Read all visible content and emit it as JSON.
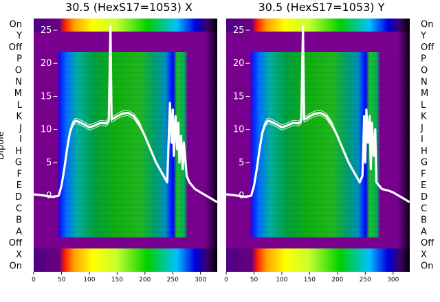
{
  "chart_data": [
    {
      "type": "heatmap",
      "title": "30.5 (HexS17=1053) X",
      "ylabel": "Dipole",
      "row_labels": [
        "On",
        "Y",
        "Off",
        "P",
        "O",
        "N",
        "M",
        "L",
        "K",
        "J",
        "I",
        "H",
        "G",
        "F",
        "E",
        "D",
        "C",
        "B",
        "A",
        "Off",
        "X",
        "On"
      ],
      "x_ticks": [
        0,
        50,
        100,
        150,
        200,
        250,
        300
      ],
      "xlim": [
        0,
        330
      ],
      "overlay_ticks": [
        0,
        5,
        10,
        15,
        20,
        25
      ],
      "overlay_ylim": [
        -1,
        27
      ],
      "overlay_trace": {
        "x": [
          0,
          20,
          35,
          45,
          50,
          55,
          60,
          65,
          70,
          75,
          80,
          90,
          100,
          110,
          120,
          130,
          135,
          138,
          140,
          145,
          150,
          160,
          170,
          180,
          190,
          200,
          210,
          220,
          230,
          240,
          245,
          248,
          250,
          252,
          255,
          258,
          260,
          262,
          265,
          268,
          270,
          275,
          280,
          290,
          300,
          310,
          320,
          330
        ],
        "y": [
          0.2,
          0,
          -0.2,
          0,
          1.5,
          4,
          7,
          9.5,
          10.8,
          11.3,
          11.2,
          10.8,
          10.3,
          10.6,
          11,
          10.9,
          11.3,
          25.5,
          11.5,
          11.7,
          12,
          12.4,
          12.5,
          12,
          10.8,
          9,
          7,
          5,
          3.5,
          2,
          14,
          8,
          13,
          6,
          12,
          7,
          11,
          5,
          9,
          4,
          8,
          3,
          2,
          1,
          0.5,
          0,
          -0.5,
          -1
        ]
      }
    },
    {
      "type": "heatmap",
      "title": "30.5 (HexS17=1053) Y",
      "row_labels": [
        "On",
        "Y",
        "Off",
        "P",
        "O",
        "N",
        "M",
        "L",
        "K",
        "J",
        "I",
        "H",
        "G",
        "F",
        "E",
        "D",
        "C",
        "B",
        "A",
        "Off",
        "X",
        "On"
      ],
      "x_ticks": [
        0,
        50,
        100,
        150,
        200,
        250,
        300
      ],
      "xlim": [
        0,
        330
      ],
      "overlay_ticks": [
        0,
        5,
        10,
        15,
        20,
        25
      ],
      "overlay_ylim": [
        -1,
        27
      ],
      "overlay_trace": {
        "x": [
          0,
          20,
          35,
          45,
          50,
          55,
          60,
          65,
          70,
          75,
          80,
          90,
          100,
          110,
          120,
          130,
          135,
          138,
          140,
          145,
          150,
          160,
          170,
          180,
          190,
          200,
          210,
          220,
          230,
          240,
          245,
          248,
          250,
          252,
          255,
          258,
          260,
          262,
          265,
          268,
          270,
          275,
          280,
          290,
          300,
          310,
          320,
          330
        ],
        "y": [
          0.2,
          0,
          -0.2,
          0,
          1.5,
          4,
          7,
          9.5,
          10.8,
          11.3,
          11.2,
          10.8,
          10.3,
          10.6,
          11,
          10.9,
          11.3,
          25.5,
          11.5,
          11.7,
          12,
          12.4,
          12.5,
          12,
          10.8,
          9,
          7,
          5,
          3.5,
          2,
          3,
          12,
          5,
          13,
          8,
          12,
          4,
          11,
          6,
          10,
          2,
          1.5,
          1,
          0.8,
          0.5,
          0,
          -0.5,
          -1
        ]
      }
    }
  ],
  "colors": {
    "background": "#ffffff",
    "frame_purple": "#800080",
    "trace": "#ffffff",
    "band_hot": [
      "#ff2a00",
      "#ffa000",
      "#ffff00",
      "#c8ff30",
      "#00d000",
      "#00b0ff",
      "#0000ff"
    ],
    "band_main": [
      "#0000ff",
      "#0060ff",
      "#00b0b0",
      "#00a060",
      "#10b010",
      "#20b820",
      "#00a070",
      "#0090c0"
    ]
  }
}
